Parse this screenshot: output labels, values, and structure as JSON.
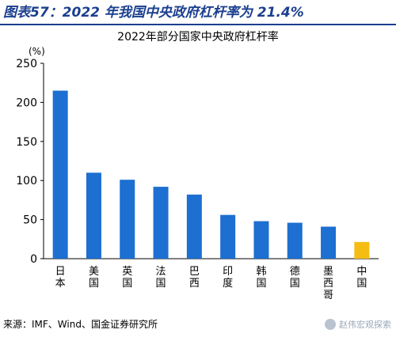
{
  "figure": {
    "title": "图表57：2022 年我国中央政府杠杆率为 21.4%",
    "source": "来源：IMF、Wind、国金证券研究所",
    "watermark": "赵伟宏观探索",
    "watermark_icon": "wechat-icon"
  },
  "chart_data": {
    "type": "bar",
    "title": "2022年部分国家中央政府杠杆率",
    "ylabel": "(%)",
    "xlabel": "",
    "ylim": [
      0,
      250
    ],
    "yticks": [
      0,
      50,
      100,
      150,
      200,
      250
    ],
    "grid": false,
    "legend": "none",
    "categories": [
      "日本",
      "美国",
      "英国",
      "法国",
      "巴西",
      "印度",
      "韩国",
      "德国",
      "墨西哥",
      "中国"
    ],
    "values": [
      215,
      110,
      101,
      92,
      82,
      56,
      48,
      46,
      41,
      21.4
    ],
    "colors": {
      "default": "#1d6fd1",
      "highlight": "#f5bd14"
    },
    "highlight_category": "中国"
  }
}
